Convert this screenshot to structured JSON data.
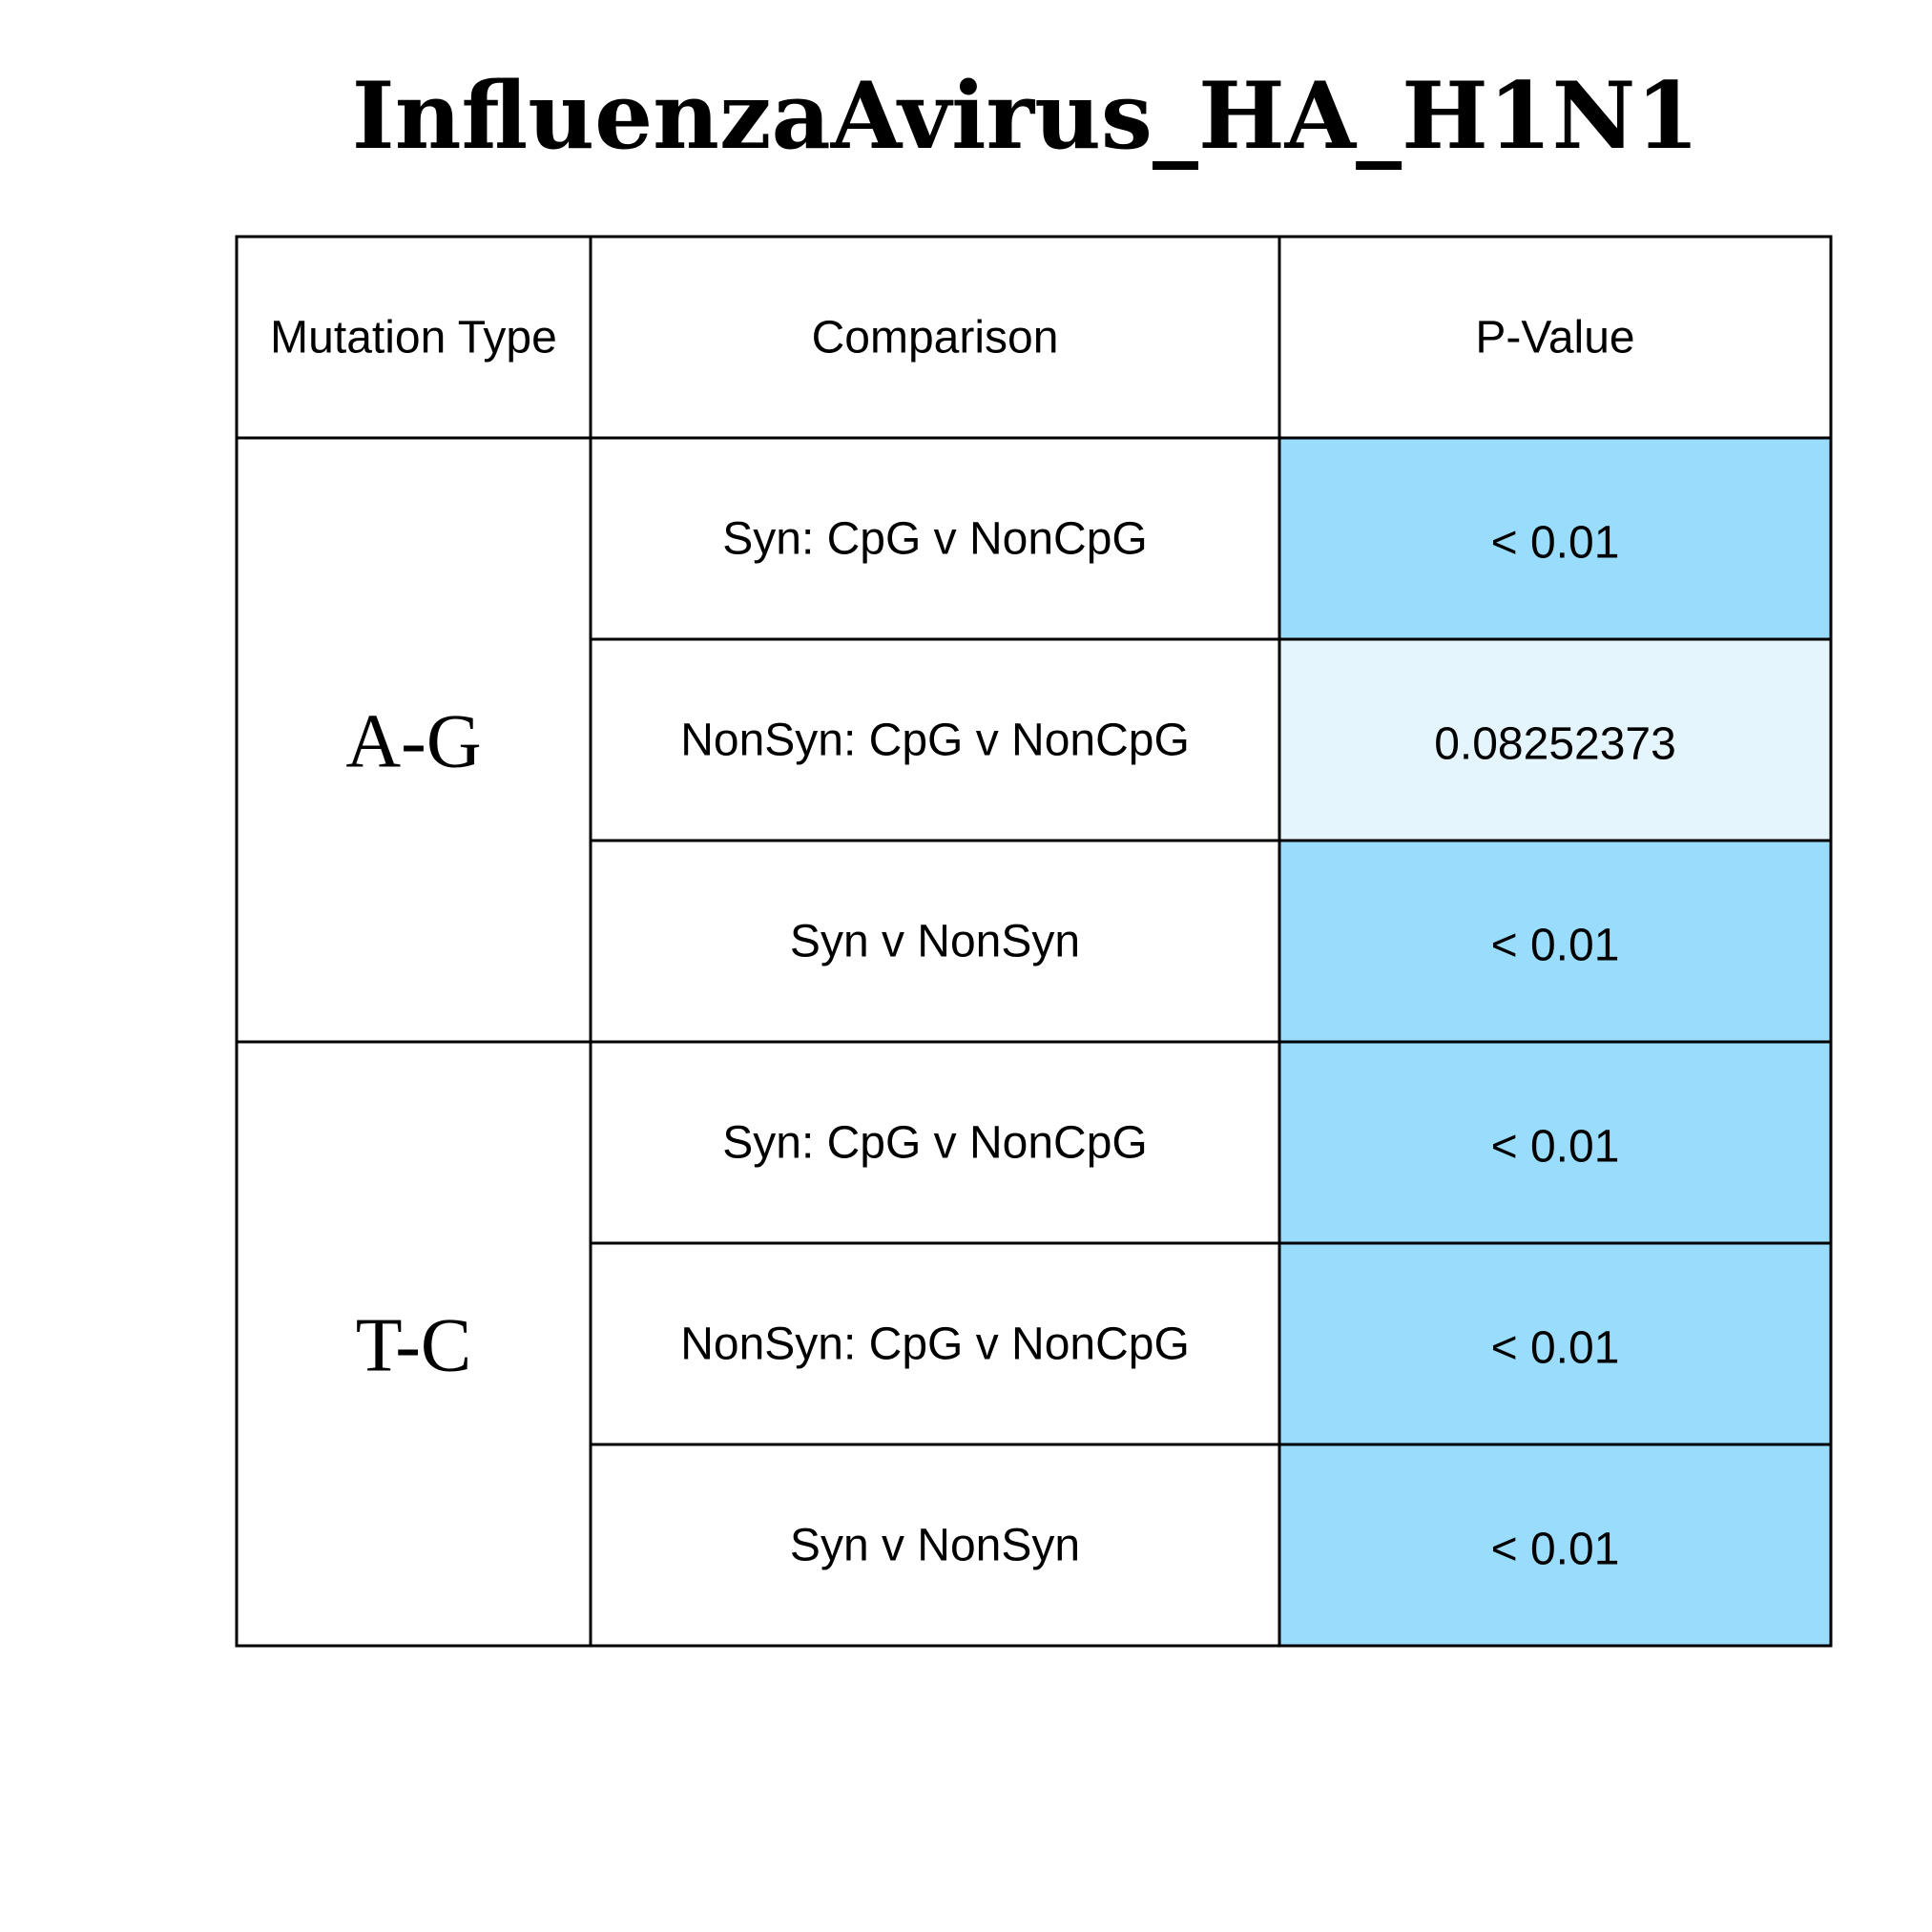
{
  "chart_data": {
    "type": "table",
    "title": "InfluenzaAvirus_HA_H1N1",
    "columns": [
      "Mutation Type",
      "Comparison",
      "P-Value"
    ],
    "groups": [
      {
        "mutation_type": "A-G",
        "rows": [
          {
            "comparison": "Syn: CpG v NonCpG",
            "p_value": "< 0.01",
            "significant": true
          },
          {
            "comparison": "NonSyn: CpG v NonCpG",
            "p_value": "0.08252373",
            "significant": false
          },
          {
            "comparison": "Syn v NonSyn",
            "p_value": "< 0.01",
            "significant": true
          }
        ]
      },
      {
        "mutation_type": "T-C",
        "rows": [
          {
            "comparison": "Syn: CpG v NonCpG",
            "p_value": "< 0.01",
            "significant": true
          },
          {
            "comparison": "NonSyn: CpG v NonCpG",
            "p_value": "< 0.01",
            "significant": true
          },
          {
            "comparison": "Syn v NonSyn",
            "p_value": "< 0.01",
            "significant": true
          }
        ]
      }
    ],
    "colors": {
      "significant": "#99dcfb",
      "not_significant": "#e4f5fd",
      "border": "#000000",
      "text": "#000000"
    }
  }
}
